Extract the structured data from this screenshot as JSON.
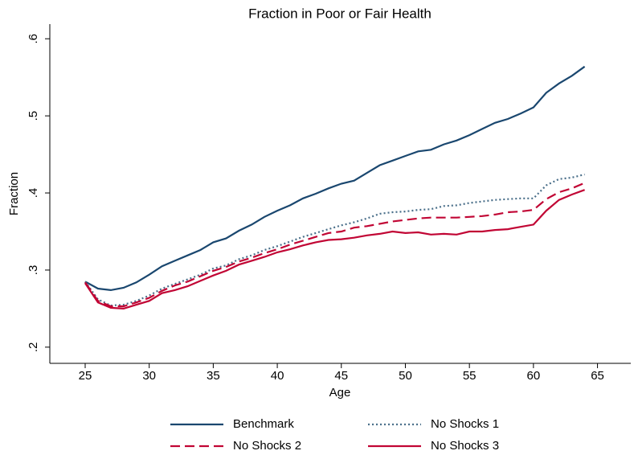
{
  "chart_data": {
    "type": "line",
    "title": "Fraction in Poor or Fair Health",
    "x_label": "Age",
    "y_label": "Fraction",
    "x": [
      25,
      26,
      27,
      28,
      29,
      30,
      31,
      32,
      33,
      34,
      35,
      36,
      37,
      38,
      39,
      40,
      41,
      42,
      43,
      44,
      45,
      46,
      47,
      48,
      49,
      50,
      51,
      52,
      53,
      54,
      55,
      56,
      57,
      58,
      59,
      60,
      61,
      62,
      63,
      64
    ],
    "series": [
      {
        "name": "Benchmark",
        "color": "#1a476f",
        "line_style": "solid",
        "values": [
          0.285,
          0.276,
          0.274,
          0.277,
          0.284,
          0.294,
          0.305,
          0.312,
          0.319,
          0.326,
          0.336,
          0.341,
          0.351,
          0.359,
          0.369,
          0.377,
          0.384,
          0.393,
          0.399,
          0.406,
          0.412,
          0.416,
          0.426,
          0.436,
          0.442,
          0.448,
          0.454,
          0.456,
          0.463,
          0.468,
          0.475,
          0.483,
          0.491,
          0.496,
          0.503,
          0.511,
          0.53,
          0.542,
          0.552,
          0.564
        ]
      },
      {
        "name": "No Shocks 1",
        "color": "#4a6f8a",
        "line_style": "dot",
        "values": [
          0.285,
          0.262,
          0.254,
          0.255,
          0.26,
          0.267,
          0.276,
          0.282,
          0.288,
          0.294,
          0.302,
          0.306,
          0.314,
          0.319,
          0.326,
          0.331,
          0.337,
          0.343,
          0.348,
          0.353,
          0.358,
          0.362,
          0.367,
          0.373,
          0.375,
          0.376,
          0.378,
          0.379,
          0.383,
          0.384,
          0.387,
          0.389,
          0.391,
          0.392,
          0.393,
          0.393,
          0.41,
          0.418,
          0.42,
          0.424
        ]
      },
      {
        "name": "No Shocks 2",
        "color": "#c10534",
        "line_style": "dash",
        "values": [
          0.284,
          0.26,
          0.253,
          0.253,
          0.258,
          0.264,
          0.273,
          0.28,
          0.285,
          0.292,
          0.299,
          0.304,
          0.311,
          0.316,
          0.322,
          0.327,
          0.333,
          0.338,
          0.343,
          0.348,
          0.35,
          0.355,
          0.357,
          0.36,
          0.363,
          0.365,
          0.367,
          0.368,
          0.368,
          0.368,
          0.369,
          0.37,
          0.372,
          0.375,
          0.376,
          0.378,
          0.392,
          0.401,
          0.406,
          0.413
        ]
      },
      {
        "name": "No Shocks 3",
        "color": "#c10534",
        "line_style": "solid",
        "values": [
          0.283,
          0.258,
          0.251,
          0.25,
          0.255,
          0.26,
          0.27,
          0.274,
          0.279,
          0.286,
          0.293,
          0.299,
          0.307,
          0.312,
          0.317,
          0.323,
          0.327,
          0.332,
          0.336,
          0.339,
          0.34,
          0.342,
          0.345,
          0.347,
          0.35,
          0.348,
          0.349,
          0.346,
          0.347,
          0.346,
          0.35,
          0.35,
          0.352,
          0.353,
          0.356,
          0.359,
          0.377,
          0.391,
          0.398,
          0.404
        ]
      }
    ],
    "xlim": [
      22.24,
      67.6
    ],
    "xticks": [
      25,
      30,
      35,
      40,
      45,
      50,
      55,
      60,
      65
    ],
    "ylim": [
      0.179,
      0.619
    ],
    "yticks": [
      {
        "value": 0.2,
        "label": ".2"
      },
      {
        "value": 0.3,
        "label": ".3"
      },
      {
        "value": 0.4,
        "label": ".4"
      },
      {
        "value": 0.5,
        "label": ".5"
      },
      {
        "value": 0.6,
        "label": ".6"
      }
    ],
    "legend": "bottom"
  }
}
